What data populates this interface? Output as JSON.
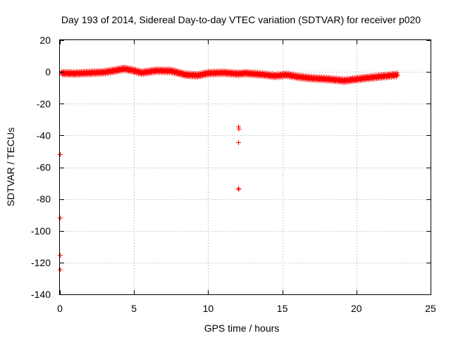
{
  "chart_data": {
    "type": "scatter",
    "title": "Day 193 of 2014, Sidereal Day-to-day VTEC variation (SDTVAR) for receiver p020",
    "xlabel": "GPS time / hours",
    "ylabel": "SDTVAR / TECUs",
    "xlim": [
      0,
      25
    ],
    "ylim": [
      -140,
      20
    ],
    "xticks": [
      0,
      5,
      10,
      15,
      20,
      25
    ],
    "yticks": [
      -140,
      -120,
      -100,
      -80,
      -60,
      -40,
      -20,
      0,
      20
    ],
    "grid": true,
    "marker": "+",
    "series_color": "#ff0000",
    "main_series": {
      "name": "SDTVAR",
      "x_start": 0.1,
      "x_end": 22.8,
      "x_step": 0.03,
      "band_half_width": 1.2,
      "trend": [
        [
          0.1,
          -0.8
        ],
        [
          1.0,
          -1.0
        ],
        [
          2.0,
          -0.6
        ],
        [
          3.0,
          -0.2
        ],
        [
          3.8,
          1.0
        ],
        [
          4.3,
          2.0
        ],
        [
          4.8,
          1.2
        ],
        [
          5.5,
          -0.5
        ],
        [
          6.5,
          0.8
        ],
        [
          7.5,
          0.6
        ],
        [
          8.5,
          -1.8
        ],
        [
          9.3,
          -2.2
        ],
        [
          10.0,
          -0.8
        ],
        [
          11.0,
          -0.5
        ],
        [
          12.0,
          -1.2
        ],
        [
          12.5,
          -0.8
        ],
        [
          13.5,
          -1.5
        ],
        [
          14.5,
          -2.5
        ],
        [
          15.3,
          -1.8
        ],
        [
          16.0,
          -3.0
        ],
        [
          17.0,
          -4.0
        ],
        [
          18.0,
          -4.5
        ],
        [
          19.2,
          -5.5
        ],
        [
          19.8,
          -4.8
        ],
        [
          20.5,
          -4.0
        ],
        [
          21.5,
          -3.0
        ],
        [
          22.8,
          -1.8
        ]
      ]
    },
    "outliers": {
      "x": [
        12.05,
        12.08,
        12.05,
        12.03,
        12.07,
        0.02,
        0.02,
        0.02,
        0.02
      ],
      "y": [
        -34.5,
        -36.0,
        -44.5,
        -73.5,
        -73.8,
        -52.0,
        -92.0,
        -115.5,
        -124.5
      ]
    }
  }
}
